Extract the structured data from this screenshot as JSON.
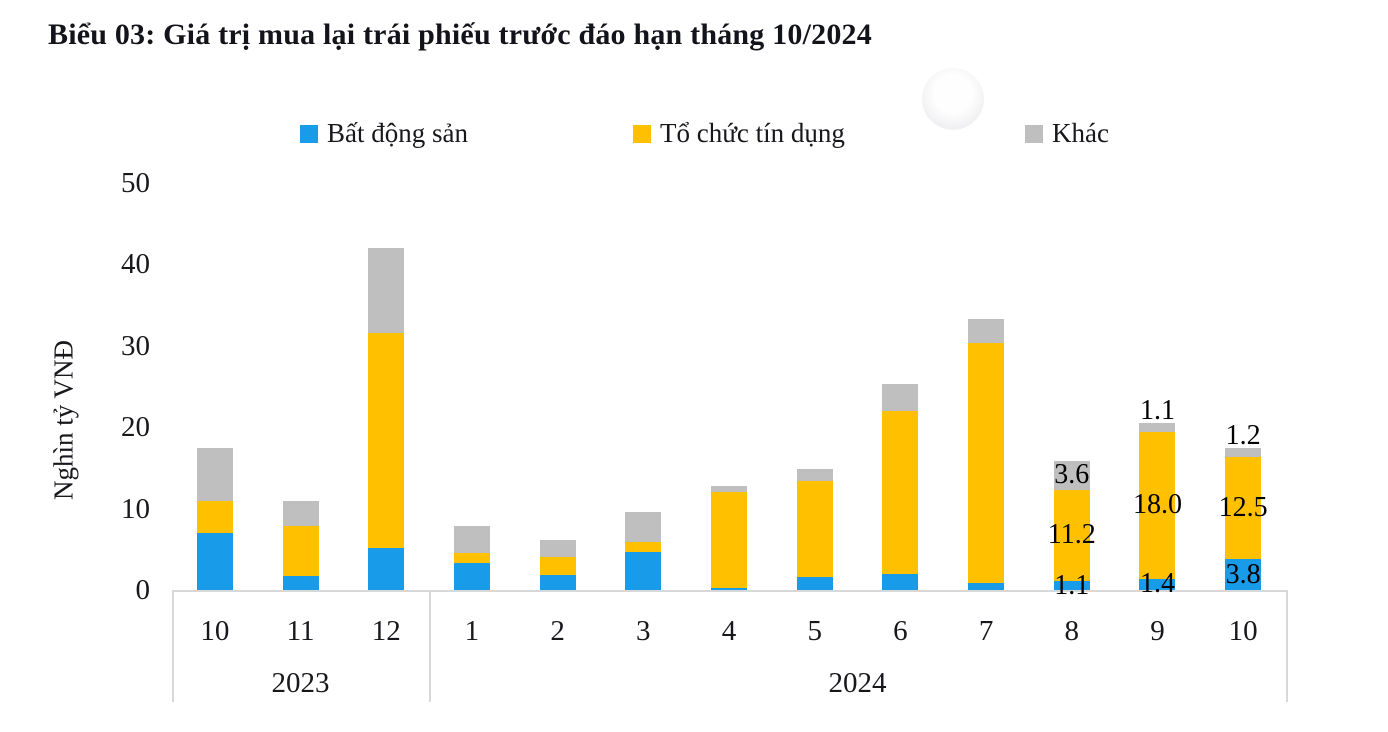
{
  "title": "Biểu 03: Giá trị mua lại trái phiếu trước đáo hạn tháng 10/2024",
  "chart_data": {
    "type": "bar",
    "stacked": true,
    "title": "Biểu 03: Giá trị mua lại trái phiếu trước đáo hạn tháng 10/2024",
    "ylabel": "Nghìn tỷ VNĐ",
    "ylim": [
      0,
      50
    ],
    "yticks": [
      0,
      10,
      20,
      30,
      40,
      50
    ],
    "grid": false,
    "legend_position": "top",
    "categories": [
      "10",
      "11",
      "12",
      "1",
      "2",
      "3",
      "4",
      "5",
      "6",
      "7",
      "8",
      "9",
      "10"
    ],
    "groups": [
      {
        "label": "2023",
        "span": 3
      },
      {
        "label": "2024",
        "span": 10
      }
    ],
    "series": [
      {
        "name": "Bất động sản",
        "color": "#189BE8",
        "values": [
          7.0,
          1.7,
          5.1,
          3.3,
          1.8,
          4.7,
          0.3,
          1.6,
          2.0,
          0.8,
          1.1,
          1.4,
          3.8
        ]
      },
      {
        "name": "Tổ chức tín dụng",
        "color": "#FFC000",
        "values": [
          3.9,
          6.2,
          26.5,
          1.2,
          2.2,
          1.2,
          11.7,
          11.8,
          20.0,
          29.5,
          11.2,
          18.0,
          12.5
        ]
      },
      {
        "name": "Khác",
        "color": "#BFBFBF",
        "values": [
          6.6,
          3.0,
          10.4,
          3.4,
          2.2,
          3.7,
          0.8,
          1.5,
          3.3,
          3.0,
          3.6,
          1.1,
          1.2
        ]
      }
    ],
    "bar_labels": [
      {
        "category_index": 10,
        "labels": [
          "1.1",
          "11.2",
          "3.6"
        ]
      },
      {
        "category_index": 11,
        "labels": [
          "1.4",
          "18.0",
          "1.1"
        ]
      },
      {
        "category_index": 12,
        "labels": [
          "3.8",
          "12.5",
          "1.2"
        ]
      }
    ],
    "colors": {
      "axis_line": "#d8d8d8",
      "text": "#17171c"
    }
  }
}
